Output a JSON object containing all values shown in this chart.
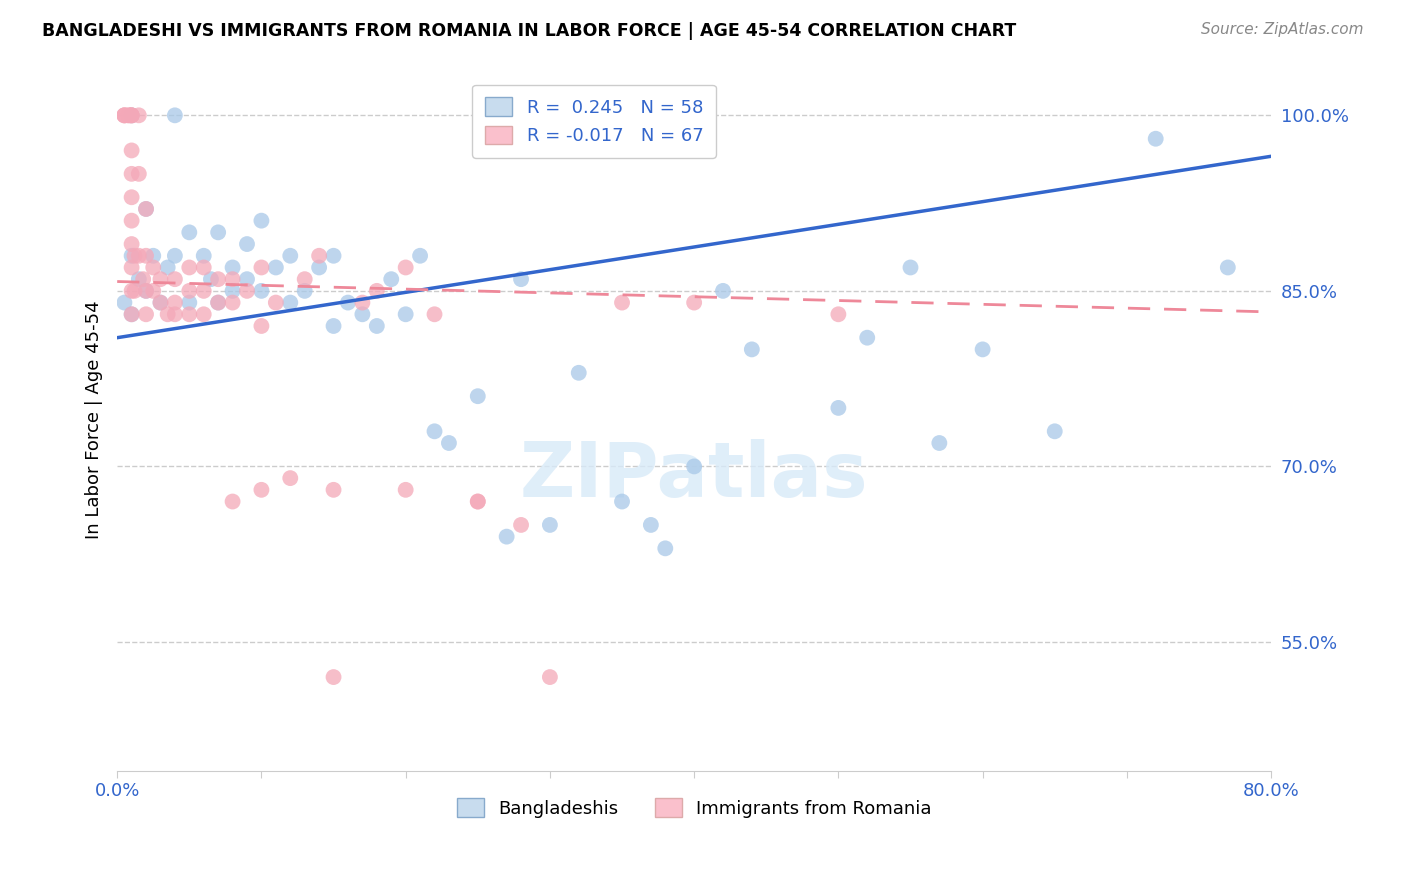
{
  "title": "BANGLADESHI VS IMMIGRANTS FROM ROMANIA IN LABOR FORCE | AGE 45-54 CORRELATION CHART",
  "source": "Source: ZipAtlas.com",
  "ylabel": "In Labor Force | Age 45-54",
  "yticks": [
    0.55,
    0.7,
    0.85,
    1.0
  ],
  "ytick_labels": [
    "55.0%",
    "70.0%",
    "85.0%",
    "100.0%"
  ],
  "xlim": [
    0.0,
    0.8
  ],
  "ylim": [
    0.44,
    1.04
  ],
  "blue_R": 0.245,
  "blue_N": 58,
  "pink_R": -0.017,
  "pink_N": 67,
  "blue_color": "#A8C8E8",
  "pink_color": "#F4A8B8",
  "blue_line_color": "#3366CC",
  "pink_line_color": "#EE8899",
  "watermark_color": "#D8EAF8",
  "blue_legend_face": "#C8DCEE",
  "pink_legend_face": "#FAC0CC",
  "blue_points_x": [
    0.005,
    0.01,
    0.01,
    0.01,
    0.015,
    0.02,
    0.02,
    0.025,
    0.03,
    0.035,
    0.04,
    0.04,
    0.05,
    0.05,
    0.06,
    0.065,
    0.07,
    0.07,
    0.08,
    0.08,
    0.09,
    0.09,
    0.1,
    0.1,
    0.11,
    0.12,
    0.12,
    0.13,
    0.14,
    0.15,
    0.15,
    0.16,
    0.17,
    0.18,
    0.19,
    0.2,
    0.21,
    0.22,
    0.23,
    0.25,
    0.27,
    0.28,
    0.3,
    0.32,
    0.35,
    0.37,
    0.38,
    0.4,
    0.42,
    0.44,
    0.5,
    0.52,
    0.55,
    0.57,
    0.6,
    0.65,
    0.72,
    0.77
  ],
  "blue_points_y": [
    0.84,
    1.0,
    0.88,
    0.83,
    0.86,
    0.92,
    0.85,
    0.88,
    0.84,
    0.87,
    1.0,
    0.88,
    0.9,
    0.84,
    0.88,
    0.86,
    0.9,
    0.84,
    0.87,
    0.85,
    0.89,
    0.86,
    0.91,
    0.85,
    0.87,
    0.88,
    0.84,
    0.85,
    0.87,
    0.88,
    0.82,
    0.84,
    0.83,
    0.82,
    0.86,
    0.83,
    0.88,
    0.73,
    0.72,
    0.76,
    0.64,
    0.86,
    0.65,
    0.78,
    0.67,
    0.65,
    0.63,
    0.7,
    0.85,
    0.8,
    0.75,
    0.81,
    0.87,
    0.72,
    0.8,
    0.73,
    0.98,
    0.87
  ],
  "pink_points_x": [
    0.005,
    0.005,
    0.005,
    0.008,
    0.008,
    0.01,
    0.01,
    0.01,
    0.01,
    0.01,
    0.01,
    0.01,
    0.01,
    0.01,
    0.01,
    0.01,
    0.012,
    0.012,
    0.015,
    0.015,
    0.015,
    0.018,
    0.02,
    0.02,
    0.02,
    0.02,
    0.025,
    0.025,
    0.03,
    0.03,
    0.035,
    0.04,
    0.04,
    0.04,
    0.05,
    0.05,
    0.05,
    0.06,
    0.06,
    0.06,
    0.07,
    0.07,
    0.08,
    0.08,
    0.09,
    0.1,
    0.1,
    0.11,
    0.12,
    0.13,
    0.14,
    0.15,
    0.17,
    0.18,
    0.2,
    0.22,
    0.25,
    0.28,
    0.3,
    0.35,
    0.4,
    0.15,
    0.2,
    0.25,
    0.5,
    0.1,
    0.08
  ],
  "pink_points_y": [
    1.0,
    1.0,
    1.0,
    1.0,
    1.0,
    1.0,
    1.0,
    1.0,
    0.97,
    0.95,
    0.93,
    0.91,
    0.89,
    0.87,
    0.85,
    0.83,
    0.88,
    0.85,
    1.0,
    0.95,
    0.88,
    0.86,
    0.92,
    0.88,
    0.85,
    0.83,
    0.87,
    0.85,
    0.86,
    0.84,
    0.83,
    0.86,
    0.84,
    0.83,
    0.87,
    0.85,
    0.83,
    0.87,
    0.85,
    0.83,
    0.86,
    0.84,
    0.86,
    0.84,
    0.85,
    0.87,
    0.82,
    0.84,
    0.69,
    0.86,
    0.88,
    0.52,
    0.84,
    0.85,
    0.87,
    0.83,
    0.67,
    0.65,
    0.52,
    0.84,
    0.84,
    0.68,
    0.68,
    0.67,
    0.83,
    0.68,
    0.67
  ]
}
